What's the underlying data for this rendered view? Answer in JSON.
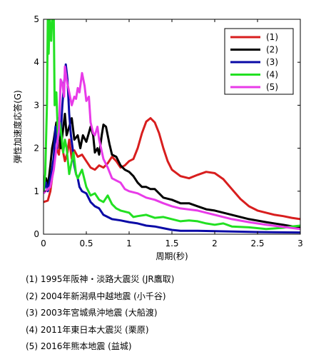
{
  "chart_data": {
    "type": "line",
    "xlabel": "周期(秒)",
    "ylabel": "弾性加速度応答(G)",
    "xlim": [
      0,
      3
    ],
    "ylim": [
      0,
      5
    ],
    "xticks": [
      0,
      0.5,
      1,
      1.5,
      2,
      2.5,
      3
    ],
    "xtick_labels": [
      "0",
      "0.5",
      "1",
      "1.5",
      "2",
      "2.5",
      "3"
    ],
    "yticks": [
      0,
      1,
      2,
      3,
      4,
      5
    ],
    "ytick_labels": [
      "0",
      "1",
      "2",
      "3",
      "4",
      "5"
    ],
    "grid": false,
    "legend_position": "top-right",
    "series": [
      {
        "name": "(1)",
        "color": "#d81e1e",
        "points": [
          [
            0,
            0.75
          ],
          [
            0.05,
            0.78
          ],
          [
            0.08,
            1.0
          ],
          [
            0.1,
            1.3
          ],
          [
            0.12,
            1.7
          ],
          [
            0.15,
            2.0
          ],
          [
            0.18,
            1.85
          ],
          [
            0.2,
            2.4
          ],
          [
            0.22,
            2.0
          ],
          [
            0.25,
            1.7
          ],
          [
            0.28,
            1.9
          ],
          [
            0.3,
            2.2
          ],
          [
            0.33,
            1.75
          ],
          [
            0.36,
            1.95
          ],
          [
            0.4,
            1.8
          ],
          [
            0.45,
            1.85
          ],
          [
            0.5,
            1.7
          ],
          [
            0.55,
            1.55
          ],
          [
            0.6,
            1.5
          ],
          [
            0.65,
            1.6
          ],
          [
            0.7,
            1.55
          ],
          [
            0.75,
            1.65
          ],
          [
            0.8,
            1.8
          ],
          [
            0.85,
            1.7
          ],
          [
            0.9,
            1.55
          ],
          [
            0.95,
            1.6
          ],
          [
            1.0,
            1.7
          ],
          [
            1.05,
            1.75
          ],
          [
            1.1,
            2.0
          ],
          [
            1.15,
            2.35
          ],
          [
            1.2,
            2.62
          ],
          [
            1.25,
            2.7
          ],
          [
            1.3,
            2.6
          ],
          [
            1.35,
            2.35
          ],
          [
            1.4,
            2.0
          ],
          [
            1.45,
            1.7
          ],
          [
            1.5,
            1.5
          ],
          [
            1.6,
            1.35
          ],
          [
            1.7,
            1.3
          ],
          [
            1.8,
            1.38
          ],
          [
            1.9,
            1.45
          ],
          [
            2.0,
            1.42
          ],
          [
            2.1,
            1.28
          ],
          [
            2.2,
            1.05
          ],
          [
            2.3,
            0.82
          ],
          [
            2.4,
            0.65
          ],
          [
            2.5,
            0.55
          ],
          [
            2.6,
            0.5
          ],
          [
            2.7,
            0.45
          ],
          [
            2.8,
            0.42
          ],
          [
            2.9,
            0.38
          ],
          [
            3.0,
            0.35
          ]
        ]
      },
      {
        "name": "(2)",
        "color": "#000000",
        "points": [
          [
            0,
            1.1
          ],
          [
            0.03,
            1.3
          ],
          [
            0.05,
            1.1
          ],
          [
            0.08,
            1.6
          ],
          [
            0.1,
            2.0
          ],
          [
            0.12,
            2.2
          ],
          [
            0.15,
            2.6
          ],
          [
            0.18,
            2.5
          ],
          [
            0.2,
            2.0
          ],
          [
            0.22,
            2.3
          ],
          [
            0.25,
            2.8
          ],
          [
            0.27,
            2.3
          ],
          [
            0.3,
            2.5
          ],
          [
            0.33,
            2.7
          ],
          [
            0.36,
            2.2
          ],
          [
            0.4,
            2.3
          ],
          [
            0.43,
            2.0
          ],
          [
            0.46,
            2.3
          ],
          [
            0.5,
            2.15
          ],
          [
            0.55,
            2.5
          ],
          [
            0.58,
            2.3
          ],
          [
            0.6,
            1.9
          ],
          [
            0.63,
            2.0
          ],
          [
            0.65,
            1.85
          ],
          [
            0.68,
            2.3
          ],
          [
            0.7,
            2.55
          ],
          [
            0.73,
            2.5
          ],
          [
            0.77,
            2.1
          ],
          [
            0.8,
            1.85
          ],
          [
            0.85,
            1.8
          ],
          [
            0.9,
            1.6
          ],
          [
            0.95,
            1.5
          ],
          [
            1.0,
            1.45
          ],
          [
            1.05,
            1.35
          ],
          [
            1.1,
            1.2
          ],
          [
            1.15,
            1.1
          ],
          [
            1.2,
            1.1
          ],
          [
            1.25,
            1.05
          ],
          [
            1.3,
            1.05
          ],
          [
            1.35,
            0.95
          ],
          [
            1.4,
            0.85
          ],
          [
            1.5,
            0.8
          ],
          [
            1.6,
            0.72
          ],
          [
            1.7,
            0.72
          ],
          [
            1.8,
            0.65
          ],
          [
            1.9,
            0.58
          ],
          [
            2.0,
            0.55
          ],
          [
            2.2,
            0.45
          ],
          [
            2.4,
            0.35
          ],
          [
            2.6,
            0.28
          ],
          [
            2.8,
            0.22
          ],
          [
            3.0,
            0.15
          ]
        ]
      },
      {
        "name": "(3)",
        "color": "#0a0aa6",
        "points": [
          [
            0,
            1.0
          ],
          [
            0.03,
            1.2
          ],
          [
            0.05,
            1.0
          ],
          [
            0.08,
            1.3
          ],
          [
            0.1,
            1.5
          ],
          [
            0.12,
            1.8
          ],
          [
            0.14,
            2.5
          ],
          [
            0.16,
            2.0
          ],
          [
            0.18,
            2.7
          ],
          [
            0.2,
            2.3
          ],
          [
            0.22,
            3.0
          ],
          [
            0.24,
            3.5
          ],
          [
            0.26,
            3.95
          ],
          [
            0.28,
            3.6
          ],
          [
            0.3,
            2.8
          ],
          [
            0.32,
            2.3
          ],
          [
            0.34,
            2.0
          ],
          [
            0.36,
            1.6
          ],
          [
            0.38,
            1.4
          ],
          [
            0.4,
            1.3
          ],
          [
            0.42,
            1.1
          ],
          [
            0.45,
            1.0
          ],
          [
            0.5,
            0.95
          ],
          [
            0.55,
            0.75
          ],
          [
            0.6,
            0.65
          ],
          [
            0.65,
            0.6
          ],
          [
            0.7,
            0.45
          ],
          [
            0.75,
            0.4
          ],
          [
            0.8,
            0.35
          ],
          [
            0.9,
            0.32
          ],
          [
            1.0,
            0.28
          ],
          [
            1.1,
            0.25
          ],
          [
            1.2,
            0.2
          ],
          [
            1.3,
            0.18
          ],
          [
            1.4,
            0.14
          ],
          [
            1.5,
            0.1
          ],
          [
            1.6,
            0.08
          ],
          [
            1.8,
            0.08
          ],
          [
            2.0,
            0.07
          ],
          [
            2.5,
            0.05
          ],
          [
            3.0,
            0.04
          ]
        ]
      },
      {
        "name": "(4)",
        "color": "#22e022",
        "points": [
          [
            0,
            1.0
          ],
          [
            0.02,
            1.4
          ],
          [
            0.04,
            3.0
          ],
          [
            0.05,
            5.0
          ],
          [
            0.06,
            4.2
          ],
          [
            0.07,
            5.0
          ],
          [
            0.09,
            4.5
          ],
          [
            0.1,
            5.0
          ],
          [
            0.12,
            5.0
          ],
          [
            0.13,
            3.0
          ],
          [
            0.15,
            3.3
          ],
          [
            0.17,
            2.2
          ],
          [
            0.19,
            2.6
          ],
          [
            0.21,
            2.3
          ],
          [
            0.23,
            1.9
          ],
          [
            0.25,
            2.2
          ],
          [
            0.27,
            2.0
          ],
          [
            0.3,
            1.4
          ],
          [
            0.32,
            1.6
          ],
          [
            0.35,
            1.9
          ],
          [
            0.38,
            1.4
          ],
          [
            0.4,
            1.3
          ],
          [
            0.45,
            1.5
          ],
          [
            0.5,
            1.1
          ],
          [
            0.55,
            0.9
          ],
          [
            0.6,
            0.95
          ],
          [
            0.65,
            0.8
          ],
          [
            0.7,
            0.75
          ],
          [
            0.75,
            0.9
          ],
          [
            0.8,
            0.7
          ],
          [
            0.85,
            0.6
          ],
          [
            0.9,
            0.55
          ],
          [
            1.0,
            0.5
          ],
          [
            1.05,
            0.4
          ],
          [
            1.1,
            0.42
          ],
          [
            1.2,
            0.45
          ],
          [
            1.3,
            0.38
          ],
          [
            1.4,
            0.4
          ],
          [
            1.5,
            0.35
          ],
          [
            1.6,
            0.3
          ],
          [
            1.7,
            0.32
          ],
          [
            1.8,
            0.3
          ],
          [
            1.9,
            0.25
          ],
          [
            2.0,
            0.22
          ],
          [
            2.1,
            0.25
          ],
          [
            2.2,
            0.18
          ],
          [
            2.4,
            0.16
          ],
          [
            2.6,
            0.12
          ],
          [
            2.8,
            0.15
          ],
          [
            2.9,
            0.18
          ],
          [
            3.0,
            0.2
          ]
        ]
      },
      {
        "name": "(5)",
        "color": "#e83be8",
        "points": [
          [
            0,
            0.95
          ],
          [
            0.05,
            1.05
          ],
          [
            0.08,
            1.1
          ],
          [
            0.1,
            1.3
          ],
          [
            0.12,
            1.5
          ],
          [
            0.15,
            2.0
          ],
          [
            0.18,
            2.4
          ],
          [
            0.2,
            3.6
          ],
          [
            0.22,
            3.5
          ],
          [
            0.24,
            3.2
          ],
          [
            0.25,
            3.9
          ],
          [
            0.27,
            3.6
          ],
          [
            0.3,
            3.3
          ],
          [
            0.33,
            3.0
          ],
          [
            0.36,
            3.2
          ],
          [
            0.38,
            3.15
          ],
          [
            0.4,
            3.4
          ],
          [
            0.42,
            3.3
          ],
          [
            0.45,
            3.75
          ],
          [
            0.48,
            3.45
          ],
          [
            0.5,
            3.1
          ],
          [
            0.53,
            3.2
          ],
          [
            0.55,
            2.6
          ],
          [
            0.58,
            2.35
          ],
          [
            0.6,
            2.3
          ],
          [
            0.63,
            2.5
          ],
          [
            0.65,
            2.2
          ],
          [
            0.7,
            1.75
          ],
          [
            0.75,
            1.55
          ],
          [
            0.8,
            1.3
          ],
          [
            0.85,
            1.25
          ],
          [
            0.9,
            1.2
          ],
          [
            0.95,
            1.05
          ],
          [
            1.0,
            1.0
          ],
          [
            1.1,
            0.95
          ],
          [
            1.2,
            0.85
          ],
          [
            1.3,
            0.8
          ],
          [
            1.4,
            0.72
          ],
          [
            1.5,
            0.65
          ],
          [
            1.6,
            0.6
          ],
          [
            1.8,
            0.55
          ],
          [
            2.0,
            0.45
          ],
          [
            2.2,
            0.35
          ],
          [
            2.4,
            0.28
          ],
          [
            2.6,
            0.22
          ],
          [
            2.8,
            0.17
          ],
          [
            3.0,
            0.12
          ]
        ]
      }
    ]
  },
  "captions": [
    "(1) 1995年阪神・淡路大震災 (JR鷹取)",
    "(2) 2004年新潟県中越地震 (小千谷)",
    "(3) 2003年宮城県沖地震 (大船渡)",
    "(4) 2011年東日本大震災 (栗原)",
    "(5) 2016年熊本地震 (益城)"
  ]
}
